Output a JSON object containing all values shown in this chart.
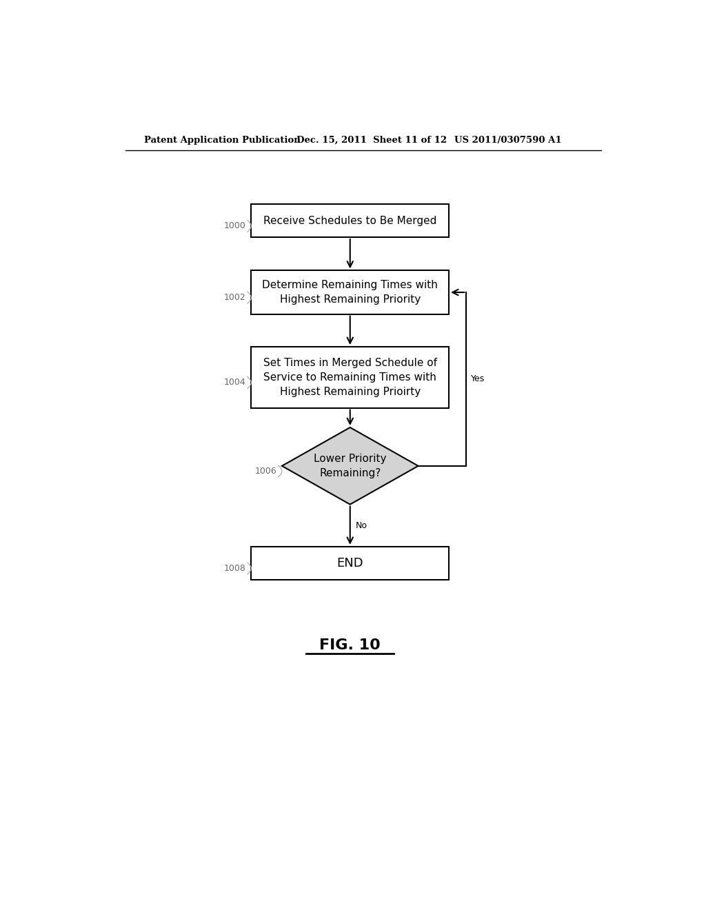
{
  "bg_color": "#ffffff",
  "header_left": "Patent Application Publication",
  "header_center": "Dec. 15, 2011  Sheet 11 of 12",
  "header_right": "US 2011/0307590 A1",
  "footer_label": "FIG. 10",
  "box1_text": "Receive Schedules to Be Merged",
  "box1_label": "1000",
  "box2_text": "Determine Remaining Times with\nHighest Remaining Priority",
  "box2_label": "1002",
  "box3_text": "Set Times in Merged Schedule of\nService to Remaining Times with\nHighest Remaining Prioirty",
  "box3_label": "1004",
  "diamond_text": "Lower Priority\nRemaining?",
  "diamond_label": "1006",
  "box4_text": "END",
  "box4_label": "1008",
  "yes_label": "Yes",
  "no_label": "No",
  "box_fill": "#ffffff",
  "box_edge": "#000000",
  "diamond_fill": "#d3d3d3",
  "diamond_edge": "#000000",
  "arrow_color": "#000000",
  "text_color": "#000000",
  "label_color": "#666666"
}
